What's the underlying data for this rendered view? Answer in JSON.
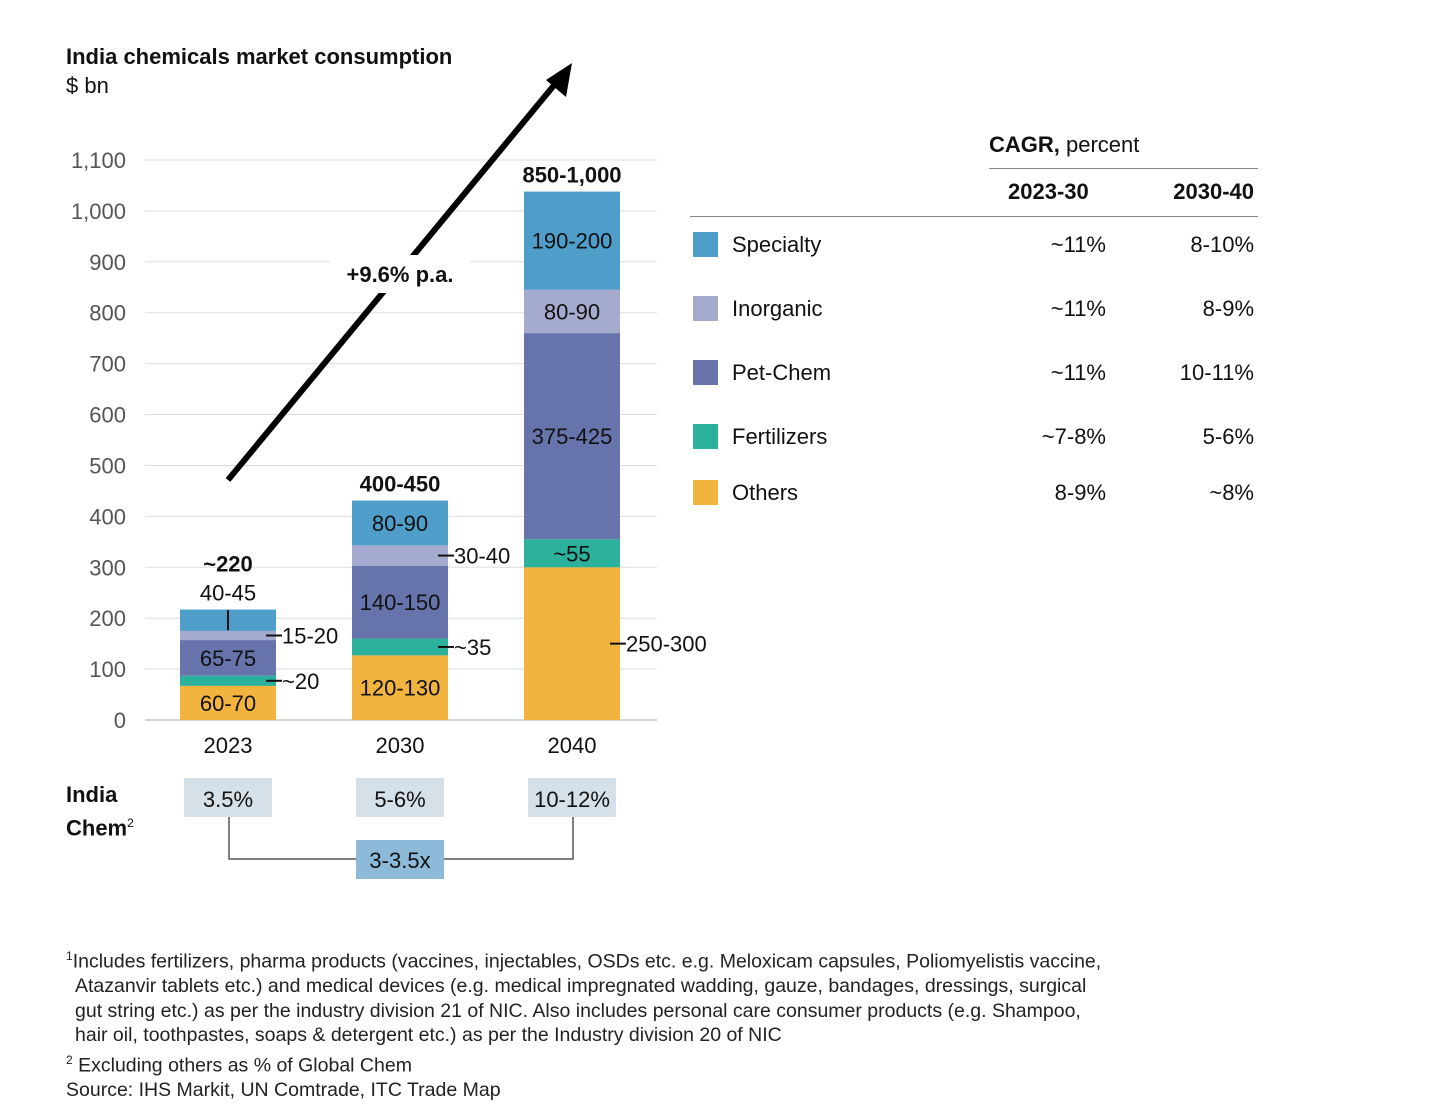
{
  "chart_data": {
    "type": "bar",
    "stacked": true,
    "title": "India chemicals market consumption",
    "ylabel": "$ bn",
    "ylim": [
      0,
      1100
    ],
    "yticks": [
      0,
      100,
      200,
      300,
      400,
      500,
      600,
      700,
      800,
      900,
      1000,
      1100
    ],
    "ytick_labels": [
      "0",
      "100",
      "200",
      "300",
      "400",
      "500",
      "600",
      "700",
      "800",
      "900",
      "1,000",
      "1,100"
    ],
    "grid": true,
    "categories": [
      "2023",
      "2030",
      "2040"
    ],
    "totals": [
      "~220",
      "400-450",
      "850-1,000"
    ],
    "series": [
      {
        "name": "Others",
        "color": "#f2b43e",
        "values": [
          67,
          127,
          300
        ],
        "labels": [
          "60-70",
          "120-130",
          "250-300"
        ],
        "label_pos": [
          "inside",
          "inside",
          "right"
        ]
      },
      {
        "name": "Fertilizers",
        "color": "#2bb19c",
        "values": [
          20,
          33,
          55
        ],
        "labels": [
          "~20",
          "~35",
          "~55"
        ],
        "label_pos": [
          "right",
          "right",
          "inside"
        ]
      },
      {
        "name": "Pet-Chem",
        "color": "#6674ab",
        "values": [
          70,
          143,
          405
        ],
        "labels": [
          "65-75",
          "140-150",
          "375-425"
        ],
        "label_pos": [
          "inside",
          "inside",
          "inside"
        ]
      },
      {
        "name": "Inorganic",
        "color": "#a5abcf",
        "values": [
          18,
          40,
          85
        ],
        "labels": [
          "15-20",
          "30-40",
          "80-90"
        ],
        "label_pos": [
          "right",
          "right",
          "inside"
        ]
      },
      {
        "name": "Specialty",
        "color": "#4f9dc9",
        "values": [
          42,
          88,
          193
        ],
        "labels": [
          "40-45",
          "80-90",
          "190-200"
        ],
        "label_pos": [
          "above",
          "inside",
          "inside"
        ]
      }
    ],
    "annotation": "+9.6% p.a.",
    "legend_placement": "right"
  },
  "legend": {
    "header_bold": "CAGR,",
    "header_rest": " percent",
    "columns": [
      "2023-30",
      "2030-40"
    ],
    "rows": [
      {
        "name": "Specialty",
        "color": "#4f9dc9",
        "c1": "~11%",
        "c2": "8-10%"
      },
      {
        "name": "Inorganic",
        "color": "#a5abcf",
        "c1": "~11%",
        "c2": "8-9%"
      },
      {
        "name": "Pet-Chem",
        "color": "#6674ab",
        "c1": "~11%",
        "c2": "10-11%"
      },
      {
        "name": "Fertilizers",
        "color": "#2bb19c",
        "c1": "~7-8%",
        "c2": "5-6%"
      },
      {
        "name": "Others",
        "color": "#f2b43e",
        "c1": "8-9%",
        "c2": "~8%"
      }
    ]
  },
  "india_chem": {
    "label1": "India",
    "label2": "Chem",
    "sup": "2",
    "shares": [
      "3.5%",
      "5-6%",
      "10-12%"
    ],
    "multiplier": "3-3.5x"
  },
  "footnotes": {
    "n1_sup": "1",
    "n1_lines": [
      "Includes fertilizers, pharma products (vaccines, injectables, OSDs etc. e.g. Meloxicam capsules, Poliomyelistis vaccine,",
      "Atazanvir tablets etc.) and medical devices (e.g. medical impregnated wadding, gauze, bandages, dressings, surgical",
      "gut string etc.) as per the industry division 21 of NIC. Also includes personal care consumer products (e.g. Shampoo,",
      "hair oil, toothpastes, soaps & detergent etc.) as per the Industry division 20 of NIC"
    ],
    "n2_sup": "2",
    "n2": " Excluding others as % of Global Chem",
    "source": "Source: IHS Markit, UN Comtrade, ITC Trade Map"
  }
}
